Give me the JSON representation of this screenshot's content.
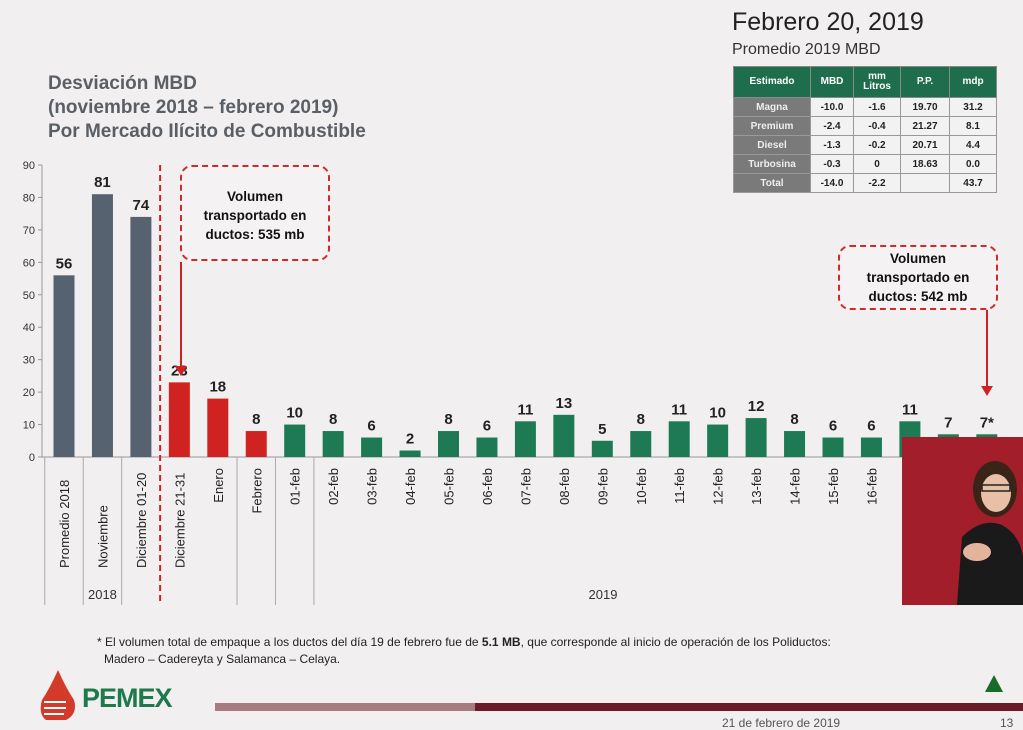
{
  "header": {
    "date": "Febrero 20, 2019",
    "subtitle": "Promedio 2019 MBD"
  },
  "title": {
    "line1": "Desviación MBD",
    "line2": "(noviembre 2018 – febrero 2019)",
    "line3": "Por Mercado Ilícito de Combustible"
  },
  "table": {
    "headers": [
      "Estimado",
      "MBD",
      "mm Litros",
      "P.P.",
      "mdp"
    ],
    "rows": [
      [
        "Magna",
        "-10.0",
        "-1.6",
        "19.70",
        "31.2"
      ],
      [
        "Premium",
        "-2.4",
        "-0.4",
        "21.27",
        "8.1"
      ],
      [
        "Diesel",
        "-1.3",
        "-0.2",
        "20.71",
        "4.4"
      ],
      [
        "Turbosina",
        "-0.3",
        "0",
        "18.63",
        "0.0"
      ],
      [
        "Total",
        "-14.0",
        "-2.2",
        "",
        "43.7"
      ]
    ]
  },
  "callouts": [
    "Volumen transportado en ductos: 535 mb",
    "Volumen transportado en ductos: 542 mb"
  ],
  "footnote": {
    "line1_pre": "* El volumen total de empaque a los ductos del día 19 de febrero fue de ",
    "line1_bold": "5.1 MB",
    "line1_post": ", que corresponde al inicio de operación de los Poliductos:",
    "line2": "Madero – Cadereyta y Salamanca – Celaya."
  },
  "footer": {
    "brand": "PEMEX",
    "date": "21 de febrero de 2019",
    "page": "13"
  },
  "colors": {
    "gray": "#566270",
    "red": "#d12222",
    "green": "#1e7a55"
  },
  "chart_data": {
    "type": "bar",
    "title": "Desviación MBD",
    "ylim": [
      0,
      90
    ],
    "yticks": [
      0,
      10,
      20,
      30,
      40,
      50,
      60,
      70,
      80,
      90
    ],
    "categories": [
      "Promedio 2018",
      "Noviembre",
      "Diciembre 01-20",
      "Diciembre 21-31",
      "Enero",
      "Febrero",
      "01-feb",
      "02-feb",
      "03-feb",
      "04-feb",
      "05-feb",
      "06-feb",
      "07-feb",
      "08-feb",
      "09-feb",
      "10-feb",
      "11-feb",
      "12-feb",
      "13-feb",
      "14-feb",
      "15-feb",
      "16-feb",
      "",
      "",
      ""
    ],
    "values": [
      56,
      81,
      74,
      23,
      18,
      8,
      10,
      8,
      6,
      2,
      8,
      6,
      11,
      13,
      5,
      8,
      11,
      10,
      12,
      8,
      6,
      6,
      11,
      7,
      7
    ],
    "data_labels": [
      "56",
      "81",
      "74",
      "23",
      "18",
      "8",
      "10",
      "8",
      "6",
      "2",
      "8",
      "6",
      "11",
      "13",
      "5",
      "8",
      "11",
      "10",
      "12",
      "8",
      "6",
      "6",
      "11",
      "7",
      "7*"
    ],
    "color_groups": [
      "gray",
      "gray",
      "gray",
      "red",
      "red",
      "red",
      "green",
      "green",
      "green",
      "green",
      "green",
      "green",
      "green",
      "green",
      "green",
      "green",
      "green",
      "green",
      "green",
      "green",
      "green",
      "green",
      "green",
      "green",
      "green"
    ],
    "groups": [
      {
        "label": "2018",
        "from": 0,
        "to": 2
      },
      {
        "label": "2019",
        "from": 4,
        "to": 24
      }
    ]
  }
}
